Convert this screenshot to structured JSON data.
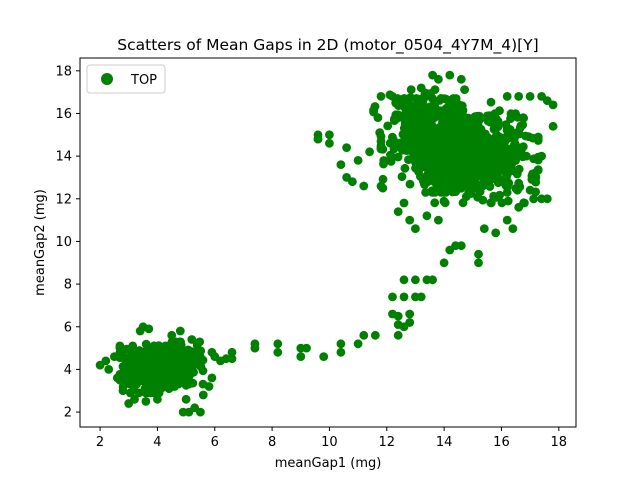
{
  "chart_data": {
    "type": "scatter",
    "title": "Scatters of Mean Gaps in 2D (motor_0504_4Y7M_4)[Y]",
    "xlabel": "meanGap1 (mg)",
    "ylabel": "meanGap2 (mg)",
    "xlim": [
      1.3,
      18.6
    ],
    "ylim": [
      1.3,
      18.6
    ],
    "xticks": [
      "2",
      "4",
      "6",
      "8",
      "10",
      "12",
      "14",
      "16",
      "18"
    ],
    "yticks": [
      "2",
      "4",
      "6",
      "8",
      "10",
      "12",
      "14",
      "16",
      "18"
    ],
    "grid": false,
    "legend": {
      "position": "top-left",
      "entries": [
        "TOP"
      ]
    },
    "series": [
      {
        "name": "TOP",
        "color": "#008000",
        "marker": "circle",
        "clusters": [
          {
            "center": [
              3.9,
              4.0
            ],
            "spread": [
              0.55,
              0.5
            ],
            "count": 380
          },
          {
            "center": [
              4.6,
              4.3
            ],
            "spread": [
              0.45,
              0.45
            ],
            "count": 220
          },
          {
            "center": [
              14.0,
              14.5
            ],
            "spread": [
              1.0,
              1.0
            ],
            "count": 480
          },
          {
            "center": [
              15.3,
              13.9
            ],
            "spread": [
              0.9,
              0.95
            ],
            "count": 420
          },
          {
            "center": [
              13.3,
              15.8
            ],
            "spread": [
              0.8,
              0.6
            ],
            "count": 160
          }
        ],
        "points": [
          [
            2.0,
            4.2
          ],
          [
            2.2,
            4.4
          ],
          [
            2.3,
            4.0
          ],
          [
            2.5,
            4.6
          ],
          [
            2.6,
            3.6
          ],
          [
            2.8,
            3.0
          ],
          [
            3.0,
            2.4
          ],
          [
            3.2,
            2.6
          ],
          [
            3.4,
            5.8
          ],
          [
            3.5,
            6.0
          ],
          [
            3.7,
            5.9
          ],
          [
            3.6,
            2.5
          ],
          [
            4.0,
            2.6
          ],
          [
            4.5,
            5.6
          ],
          [
            4.8,
            5.8
          ],
          [
            5.2,
            5.4
          ],
          [
            5.0,
            2.6
          ],
          [
            4.9,
            2.0
          ],
          [
            5.1,
            2.0
          ],
          [
            5.3,
            2.2
          ],
          [
            5.5,
            2.0
          ],
          [
            5.6,
            2.8
          ],
          [
            5.8,
            3.2
          ],
          [
            5.9,
            3.6
          ],
          [
            5.9,
            4.8
          ],
          [
            6.0,
            4.6
          ],
          [
            6.2,
            4.4
          ],
          [
            6.4,
            4.5
          ],
          [
            6.6,
            4.8
          ],
          [
            6.6,
            4.5
          ],
          [
            7.4,
            5.0
          ],
          [
            7.4,
            5.2
          ],
          [
            8.2,
            5.2
          ],
          [
            8.2,
            4.8
          ],
          [
            9.0,
            5.0
          ],
          [
            9.0,
            4.6
          ],
          [
            9.2,
            5.0
          ],
          [
            9.8,
            4.6
          ],
          [
            10.4,
            4.8
          ],
          [
            10.4,
            5.2
          ],
          [
            11.0,
            5.2
          ],
          [
            11.2,
            5.6
          ],
          [
            11.6,
            5.6
          ],
          [
            12.2,
            6.6
          ],
          [
            12.4,
            6.5
          ],
          [
            12.4,
            5.6
          ],
          [
            12.4,
            6.1
          ],
          [
            12.6,
            6.0
          ],
          [
            12.8,
            6.6
          ],
          [
            12.8,
            6.2
          ],
          [
            12.2,
            7.4
          ],
          [
            12.6,
            7.4
          ],
          [
            13.0,
            7.4
          ],
          [
            13.2,
            7.4
          ],
          [
            12.6,
            8.2
          ],
          [
            13.0,
            8.2
          ],
          [
            13.4,
            8.2
          ],
          [
            13.6,
            8.2
          ],
          [
            14.0,
            9.0
          ],
          [
            14.2,
            9.6
          ],
          [
            14.4,
            9.8
          ],
          [
            14.6,
            9.8
          ],
          [
            15.2,
            9.0
          ],
          [
            15.2,
            9.4
          ],
          [
            9.6,
            15.0
          ],
          [
            9.6,
            14.8
          ],
          [
            10.0,
            15.0
          ],
          [
            10.0,
            14.6
          ],
          [
            10.4,
            13.6
          ],
          [
            10.6,
            13.0
          ],
          [
            10.8,
            12.8
          ],
          [
            11.0,
            13.8
          ],
          [
            11.2,
            12.6
          ],
          [
            11.4,
            14.2
          ],
          [
            10.6,
            14.4
          ],
          [
            11.8,
            16.8
          ],
          [
            12.2,
            16.8
          ],
          [
            12.6,
            16.7
          ],
          [
            13.6,
            17.8
          ],
          [
            13.8,
            17.6
          ],
          [
            14.2,
            17.8
          ],
          [
            14.6,
            17.6
          ],
          [
            13.2,
            17.2
          ],
          [
            16.2,
            16.8
          ],
          [
            16.6,
            16.8
          ],
          [
            17.0,
            16.8
          ],
          [
            17.4,
            16.8
          ],
          [
            17.8,
            16.4
          ],
          [
            17.6,
            16.6
          ],
          [
            17.8,
            15.4
          ],
          [
            17.4,
            14.0
          ],
          [
            17.2,
            13.0
          ],
          [
            17.0,
            12.4
          ],
          [
            17.4,
            12.0
          ],
          [
            17.6,
            12.0
          ],
          [
            16.6,
            11.6
          ],
          [
            16.8,
            11.8
          ],
          [
            16.2,
            11.0
          ],
          [
            15.8,
            10.4
          ],
          [
            15.4,
            10.6
          ],
          [
            16.4,
            10.6
          ],
          [
            12.4,
            11.4
          ],
          [
            12.6,
            11.8
          ],
          [
            12.8,
            11.0
          ],
          [
            13.0,
            10.6
          ],
          [
            13.4,
            11.2
          ],
          [
            13.8,
            11.0
          ]
        ]
      }
    ]
  }
}
